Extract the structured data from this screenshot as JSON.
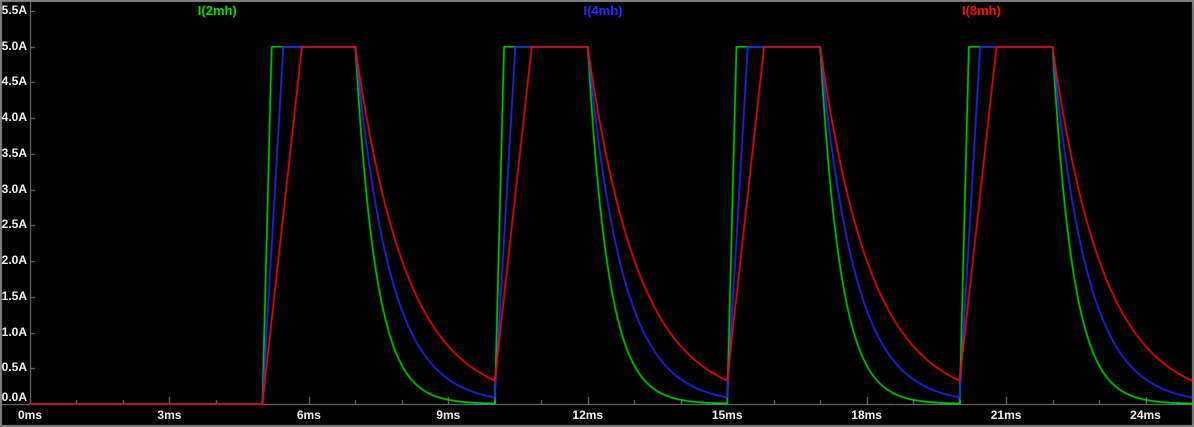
{
  "window": {
    "background": "#000000",
    "border_color": "#828282",
    "tick_color": "#828282",
    "label_color": "#f2f2f2"
  },
  "chart_data": {
    "type": "line",
    "title": "",
    "x_axis": {
      "unit": "ms",
      "range_ms": [
        0,
        25
      ],
      "tick_labels": [
        "0ms",
        "3ms",
        "6ms",
        "9ms",
        "12ms",
        "15ms",
        "18ms",
        "21ms",
        "24ms"
      ],
      "tick_values_ms": [
        0,
        3,
        6,
        9,
        12,
        15,
        18,
        21,
        24
      ],
      "minor_tick_step_ms": 1
    },
    "y_axis": {
      "unit": "A",
      "range_a": [
        0,
        5.5
      ],
      "tick_labels": [
        "0.0A",
        "0.5A",
        "1.0A",
        "1.5A",
        "2.0A",
        "2.5A",
        "3.0A",
        "3.5A",
        "4.0A",
        "4.5A",
        "5.0A",
        "5.5A"
      ],
      "tick_values_a": [
        0,
        0.5,
        1,
        1.5,
        2,
        2.5,
        3,
        3.5,
        4,
        4.5,
        5,
        5.5
      ]
    },
    "legend": [
      "I(2mh)",
      "I(4mh)",
      "I(8mh)"
    ],
    "legend_center_fractions": [
      0.182,
      0.505,
      0.822
    ],
    "series": [
      {
        "name": "I(2mh)",
        "color": "#00e000",
        "rise_ms": 0.2,
        "decay_tau_ms": 0.45
      },
      {
        "name": "I(4mh)",
        "color": "#2828ff",
        "rise_ms": 0.45,
        "decay_tau_ms": 0.75
      },
      {
        "name": "I(8mh)",
        "color": "#ff0a0a",
        "rise_ms": 0.85,
        "decay_tau_ms": 1.1
      }
    ],
    "excitation": {
      "description": "periodic current pulses: flat 0A until first pulse, linear ramp to peak, 2ms plateau at 5A, exponential decay between pulses",
      "pulse_start_ms": 5,
      "pulse_period_ms": 5,
      "pulse_on_ms": 2,
      "peak_current_a": 5.0,
      "t_end_ms": 25
    }
  }
}
